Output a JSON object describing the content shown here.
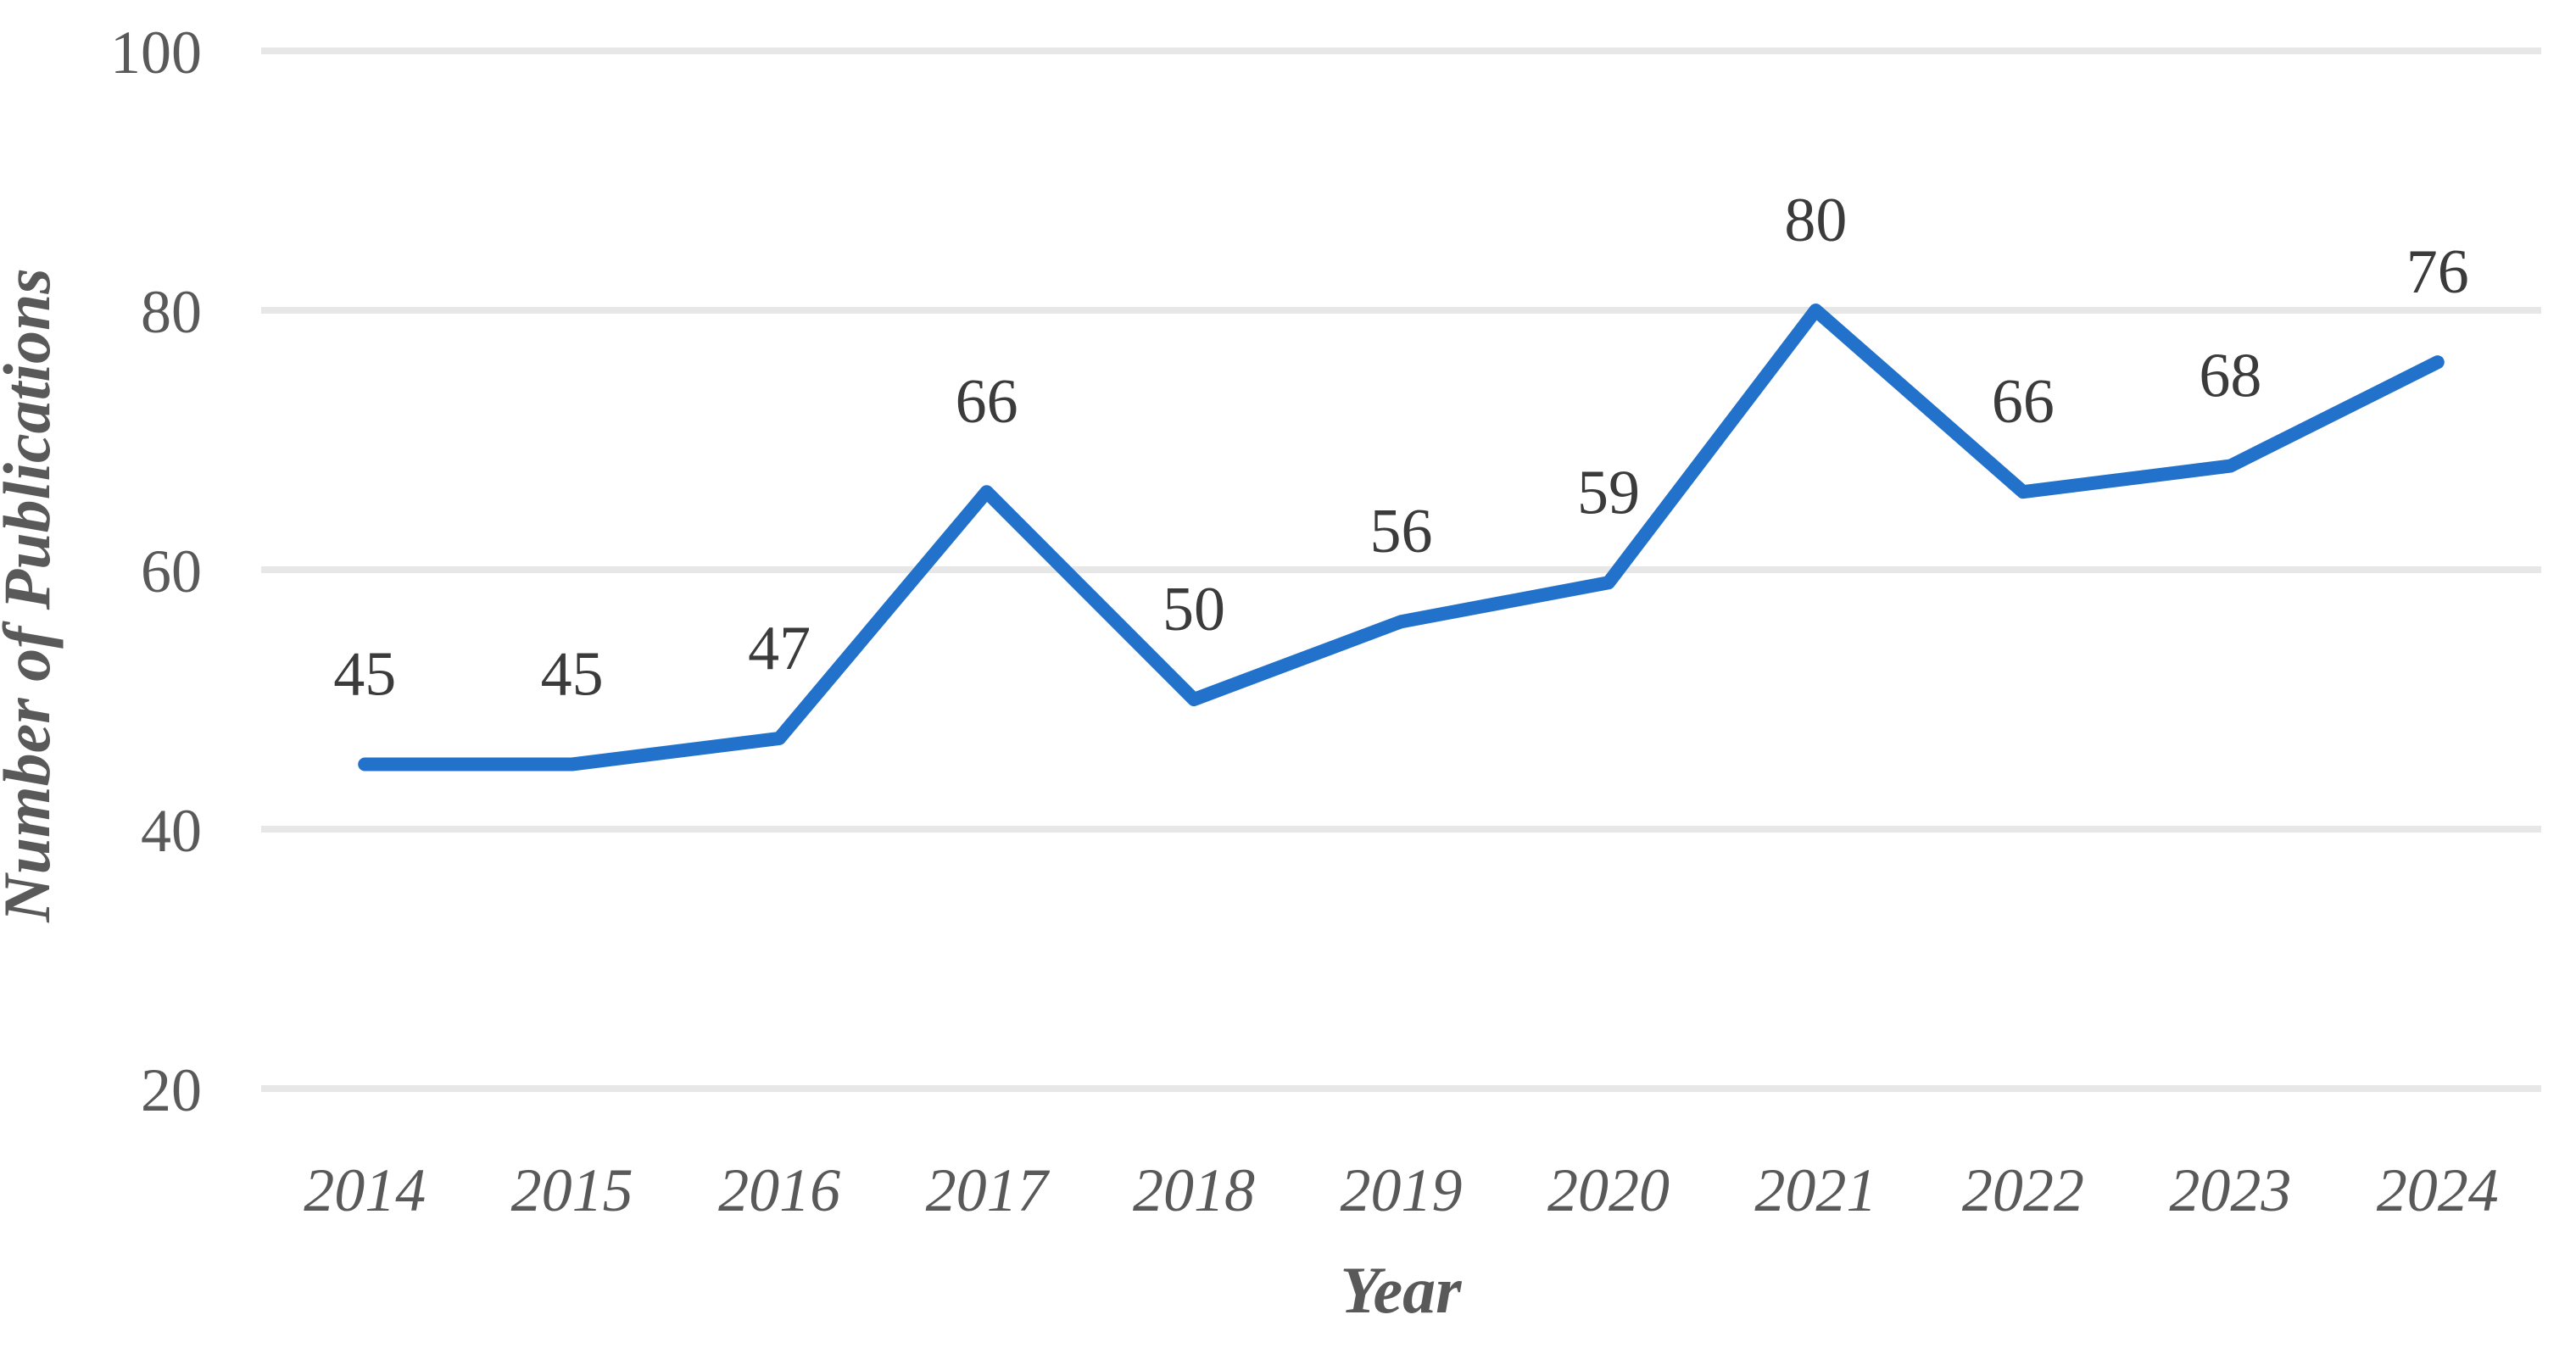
{
  "figure": {
    "background_color": "#FFFFFF"
  },
  "chart_data": {
    "type": "line",
    "title": "",
    "xlabel": "Year",
    "ylabel": "Number of Publications",
    "categories": [
      "2014",
      "2015",
      "2016",
      "2017",
      "2018",
      "2019",
      "2020",
      "2021",
      "2022",
      "2023",
      "2024"
    ],
    "series": [
      {
        "name": "Number of Publications",
        "values": [
          45,
          45,
          47,
          66,
          50,
          56,
          59,
          80,
          66,
          68,
          76
        ]
      }
    ],
    "data_labels_shown": true,
    "yticks": [
      20,
      40,
      60,
      80,
      100
    ],
    "ylim": [
      20,
      100
    ],
    "grid": "horizontal",
    "legend_position": "none",
    "markers": "none",
    "colors": {
      "line": "#2272CB",
      "gridline": "#E7E7E7",
      "tick_label": "#595959",
      "data_label": "#3B3B3B",
      "axis_title": "#595959"
    }
  }
}
